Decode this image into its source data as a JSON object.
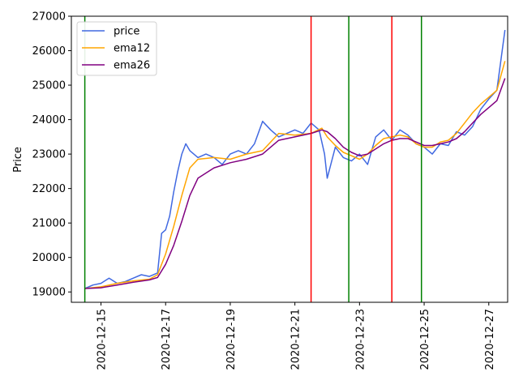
{
  "chart_data": {
    "type": "line",
    "title": "",
    "xlabel": "",
    "ylabel": "Price",
    "x_range": [
      "2020-12-14T02:00",
      "2020-12-27T14:00"
    ],
    "ylim": [
      18700,
      27000
    ],
    "x_ticks": [
      "2020-12-15",
      "2020-12-17",
      "2020-12-19",
      "2020-12-21",
      "2020-12-23",
      "2020-12-25",
      "2020-12-27"
    ],
    "y_ticks": [
      19000,
      20000,
      21000,
      22000,
      23000,
      24000,
      25000,
      26000,
      27000
    ],
    "grid": false,
    "legend_position": "top-left",
    "series": [
      {
        "name": "price",
        "color": "#4169e1",
        "x": [
          "2020-12-14T12:00",
          "2020-12-14T18:00",
          "2020-12-15T00:00",
          "2020-12-15T06:00",
          "2020-12-15T12:00",
          "2020-12-15T18:00",
          "2020-12-16T00:00",
          "2020-12-16T06:00",
          "2020-12-16T12:00",
          "2020-12-16T18:00",
          "2020-12-16T21:00",
          "2020-12-17T00:00",
          "2020-12-17T03:00",
          "2020-12-17T06:00",
          "2020-12-17T09:00",
          "2020-12-17T12:00",
          "2020-12-17T15:00",
          "2020-12-17T18:00",
          "2020-12-18T00:00",
          "2020-12-18T06:00",
          "2020-12-18T12:00",
          "2020-12-18T18:00",
          "2020-12-19T00:00",
          "2020-12-19T06:00",
          "2020-12-19T12:00",
          "2020-12-19T18:00",
          "2020-12-20T00:00",
          "2020-12-20T06:00",
          "2020-12-20T12:00",
          "2020-12-20T18:00",
          "2020-12-21T00:00",
          "2020-12-21T06:00",
          "2020-12-21T12:00",
          "2020-12-21T18:00",
          "2020-12-21T22:00",
          "2020-12-22T00:00",
          "2020-12-22T06:00",
          "2020-12-22T12:00",
          "2020-12-22T18:00",
          "2020-12-23T00:00",
          "2020-12-23T06:00",
          "2020-12-23T12:00",
          "2020-12-23T18:00",
          "2020-12-24T00:00",
          "2020-12-24T06:00",
          "2020-12-24T12:00",
          "2020-12-24T18:00",
          "2020-12-25T00:00",
          "2020-12-25T06:00",
          "2020-12-25T12:00",
          "2020-12-25T18:00",
          "2020-12-26T00:00",
          "2020-12-26T06:00",
          "2020-12-26T12:00",
          "2020-12-26T18:00",
          "2020-12-27T00:00",
          "2020-12-27T06:00",
          "2020-12-27T12:00"
        ],
        "values": [
          19100,
          19200,
          19250,
          19400,
          19250,
          19300,
          19400,
          19500,
          19450,
          19550,
          20700,
          20800,
          21200,
          21900,
          22500,
          23000,
          23300,
          23100,
          22900,
          23000,
          22900,
          22700,
          23000,
          23100,
          23000,
          23300,
          23950,
          23700,
          23500,
          23600,
          23700,
          23600,
          23900,
          23700,
          23000,
          22300,
          23200,
          22900,
          22800,
          23000,
          22700,
          23500,
          23700,
          23400,
          23700,
          23550,
          23300,
          23200,
          23000,
          23300,
          23250,
          23650,
          23550,
          23800,
          24300,
          24600,
          24850,
          26600
        ]
      },
      {
        "name": "ema12",
        "color": "#ffa500",
        "x": [
          "2020-12-14T12:00",
          "2020-12-15T00:00",
          "2020-12-15T12:00",
          "2020-12-16T00:00",
          "2020-12-16T12:00",
          "2020-12-16T18:00",
          "2020-12-17T00:00",
          "2020-12-17T06:00",
          "2020-12-17T12:00",
          "2020-12-17T18:00",
          "2020-12-18T00:00",
          "2020-12-18T12:00",
          "2020-12-19T00:00",
          "2020-12-19T12:00",
          "2020-12-20T00:00",
          "2020-12-20T12:00",
          "2020-12-21T00:00",
          "2020-12-21T12:00",
          "2020-12-21T20:00",
          "2020-12-22T00:00",
          "2020-12-22T06:00",
          "2020-12-22T12:00",
          "2020-12-22T18:00",
          "2020-12-23T00:00",
          "2020-12-23T06:00",
          "2020-12-23T12:00",
          "2020-12-23T18:00",
          "2020-12-24T00:00",
          "2020-12-24T06:00",
          "2020-12-24T12:00",
          "2020-12-24T18:00",
          "2020-12-25T00:00",
          "2020-12-25T06:00",
          "2020-12-25T12:00",
          "2020-12-25T18:00",
          "2020-12-26T00:00",
          "2020-12-26T06:00",
          "2020-12-26T12:00",
          "2020-12-26T18:00",
          "2020-12-27T00:00",
          "2020-12-27T06:00",
          "2020-12-27T12:00"
        ],
        "values": [
          19100,
          19150,
          19250,
          19320,
          19370,
          19500,
          20100,
          20900,
          21800,
          22600,
          22850,
          22900,
          22850,
          23000,
          23100,
          23600,
          23550,
          23600,
          23750,
          23500,
          23250,
          23050,
          22950,
          22850,
          23000,
          23250,
          23450,
          23500,
          23550,
          23500,
          23300,
          23200,
          23200,
          23350,
          23400,
          23600,
          23900,
          24200,
          24450,
          24650,
          24850,
          25700
        ]
      },
      {
        "name": "ema26",
        "color": "#800080",
        "x": [
          "2020-12-14T12:00",
          "2020-12-15T00:00",
          "2020-12-15T12:00",
          "2020-12-16T00:00",
          "2020-12-16T12:00",
          "2020-12-16T18:00",
          "2020-12-17T00:00",
          "2020-12-17T06:00",
          "2020-12-17T12:00",
          "2020-12-17T18:00",
          "2020-12-18T00:00",
          "2020-12-18T12:00",
          "2020-12-19T00:00",
          "2020-12-19T12:00",
          "2020-12-20T00:00",
          "2020-12-20T12:00",
          "2020-12-21T00:00",
          "2020-12-21T12:00",
          "2020-12-21T20:00",
          "2020-12-22T00:00",
          "2020-12-22T06:00",
          "2020-12-22T12:00",
          "2020-12-22T18:00",
          "2020-12-23T00:00",
          "2020-12-23T06:00",
          "2020-12-23T12:00",
          "2020-12-23T18:00",
          "2020-12-24T00:00",
          "2020-12-24T06:00",
          "2020-12-24T12:00",
          "2020-12-24T18:00",
          "2020-12-25T00:00",
          "2020-12-25T06:00",
          "2020-12-25T12:00",
          "2020-12-25T18:00",
          "2020-12-26T00:00",
          "2020-12-26T06:00",
          "2020-12-26T12:00",
          "2020-12-26T18:00",
          "2020-12-27T00:00",
          "2020-12-27T06:00",
          "2020-12-27T12:00"
        ],
        "values": [
          19100,
          19120,
          19200,
          19280,
          19350,
          19420,
          19800,
          20350,
          21050,
          21800,
          22300,
          22600,
          22750,
          22850,
          23000,
          23400,
          23500,
          23600,
          23700,
          23650,
          23450,
          23200,
          23050,
          22950,
          23000,
          23150,
          23300,
          23400,
          23450,
          23450,
          23350,
          23250,
          23250,
          23300,
          23350,
          23450,
          23650,
          23900,
          24150,
          24350,
          24550,
          25200
        ]
      }
    ],
    "vertical_lines": [
      {
        "x": "2020-12-14T12:00",
        "color": "#008000"
      },
      {
        "x": "2020-12-21T12:00",
        "color": "#ff0000"
      },
      {
        "x": "2020-12-22T16:00",
        "color": "#008000"
      },
      {
        "x": "2020-12-24T00:00",
        "color": "#ff0000"
      },
      {
        "x": "2020-12-24T22:00",
        "color": "#008000"
      }
    ]
  }
}
